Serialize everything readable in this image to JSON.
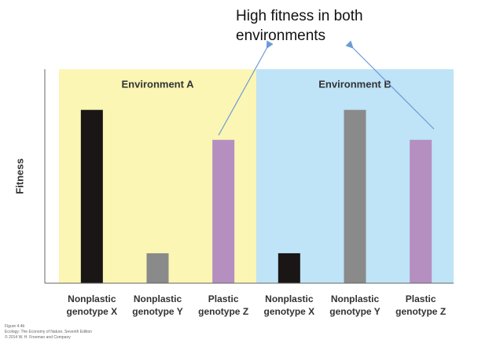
{
  "chart_data": {
    "type": "bar",
    "ylabel": "Fitness",
    "annotation": "High fitness in both environments",
    "ylim": [
      0,
      100
    ],
    "panels": [
      {
        "name": "Environment A",
        "color": "#fbf6b4",
        "categories": [
          "Nonplastic genotype X",
          "Nonplastic genotype Y",
          "Plastic genotype Z"
        ],
        "values": [
          81,
          14,
          67
        ],
        "colors": [
          "#1a1616",
          "#8a8a8a",
          "#b48fc0"
        ]
      },
      {
        "name": "Environment B",
        "color": "#bfe3f7",
        "categories": [
          "Nonplastic genotype X",
          "Nonplastic genotype Y",
          "Plastic genotype Z"
        ],
        "values": [
          14,
          81,
          67
        ],
        "colors": [
          "#1a1616",
          "#8a8a8a",
          "#b48fc0"
        ]
      }
    ],
    "footnote": [
      "Figure 4.4b",
      "Ecology: The Economy of Nature, Seventh Edition",
      "© 2014 W. H. Freeman and Company"
    ]
  }
}
